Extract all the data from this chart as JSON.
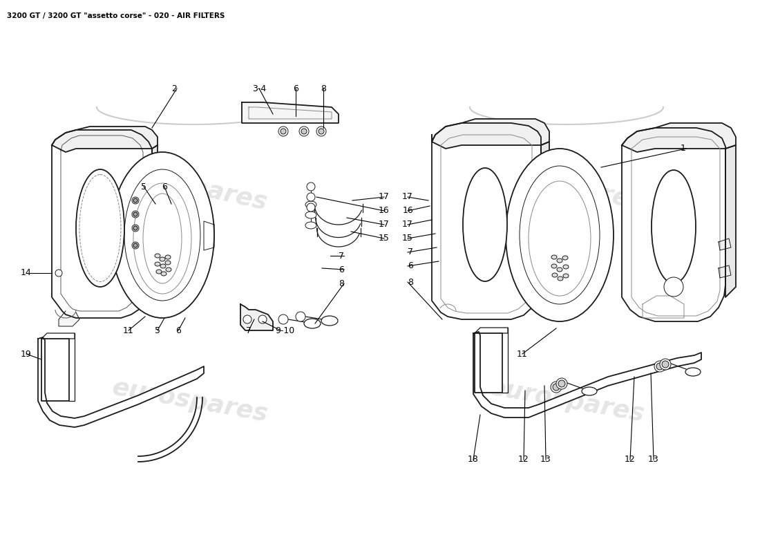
{
  "title": "3200 GT / 3200 GT \"assetto corse\" - 020 - AIR FILTERS",
  "title_fontsize": 7.5,
  "title_color": "#000000",
  "background_color": "#ffffff",
  "watermark_text": "eurospares",
  "watermark_color": "#cccccc",
  "watermark_fontsize": 26,
  "line_color": "#1a1a1a",
  "label_fontsize": 9,
  "label_fontsize_sm": 8
}
